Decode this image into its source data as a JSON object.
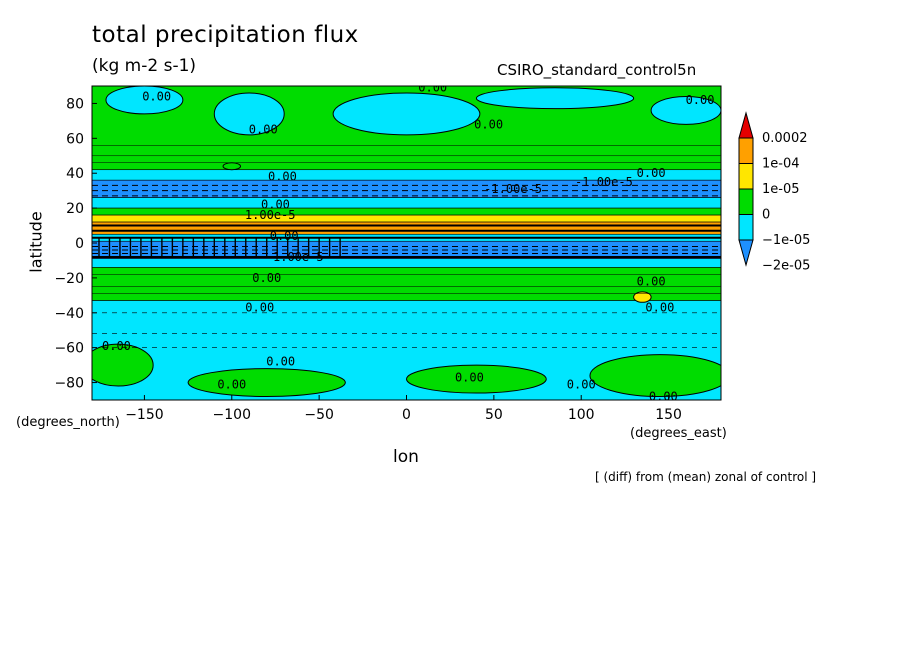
{
  "header": {
    "title": "total precipitation flux",
    "units": "(kg m-2 s-1)",
    "dataset": "CSIRO_standard_control5n",
    "note": "[ (diff) from (mean) zonal of control ]"
  },
  "colors": {
    "c_low": "#1e90ff",
    "c_neg": "#00e6ff",
    "c_zero": "#00dc00",
    "c_pos1": "#ffe600",
    "c_pos2": "#ffa000",
    "c_high": "#e60000"
  },
  "chart_data": {
    "type": "heatmap",
    "title": "total precipitation flux",
    "subtitle": "(kg m-2 s-1)",
    "xlabel": "lon",
    "ylabel": "latitude",
    "x_unit": "(degrees_east)",
    "y_unit": "(degrees_north)",
    "xlim": [
      -180,
      180
    ],
    "ylim": [
      -90,
      90
    ],
    "x_ticks": [
      -150,
      -100,
      -50,
      0,
      50,
      100,
      150
    ],
    "y_ticks": [
      80,
      60,
      40,
      20,
      0,
      -20,
      -40,
      -60,
      -80
    ],
    "colorbar": {
      "labels": [
        "0.0002",
        "1e-04",
        "1e-05",
        "0",
        "-1e-05",
        "-2e-05"
      ],
      "colors": [
        "#e60000",
        "#ffa000",
        "#ffe600",
        "#00dc00",
        "#00e6ff",
        "#1e90ff"
      ]
    },
    "zonal_bands": [
      {
        "lat_from": 90,
        "lat_to": 42,
        "level": "0"
      },
      {
        "lat_from": 42,
        "lat_to": 36,
        "level": "-1e-05"
      },
      {
        "lat_from": 36,
        "lat_to": 26,
        "level": "-2e-05"
      },
      {
        "lat_from": 26,
        "lat_to": 20,
        "level": "-1e-05"
      },
      {
        "lat_from": 20,
        "lat_to": 16,
        "level": "0"
      },
      {
        "lat_from": 16,
        "lat_to": 12,
        "level": "1e-05"
      },
      {
        "lat_from": 12,
        "lat_to": 5,
        "level": "1e-04"
      },
      {
        "lat_from": 5,
        "lat_to": 1,
        "level": "-1e-05"
      },
      {
        "lat_from": 1,
        "lat_to": -9,
        "level": "-2e-05"
      },
      {
        "lat_from": -9,
        "lat_to": -14,
        "level": "-1e-05"
      },
      {
        "lat_from": -14,
        "lat_to": -33,
        "level": "0"
      },
      {
        "lat_from": -33,
        "lat_to": -90,
        "level": "-1e-05"
      }
    ],
    "patches": [
      {
        "lon": -150,
        "lat": 82,
        "rx": 22,
        "ry": 8,
        "level": "-1e-05"
      },
      {
        "lon": -90,
        "lat": 74,
        "rx": 20,
        "ry": 12,
        "level": "-1e-05"
      },
      {
        "lon": 0,
        "lat": 74,
        "rx": 42,
        "ry": 12,
        "level": "-1e-05"
      },
      {
        "lon": 85,
        "lat": 83,
        "rx": 45,
        "ry": 6,
        "level": "-1e-05"
      },
      {
        "lon": 160,
        "lat": 76,
        "rx": 20,
        "ry": 8,
        "level": "-1e-05"
      },
      {
        "lon": -165,
        "lat": -70,
        "rx": 20,
        "ry": 12,
        "level": "0"
      },
      {
        "lon": -80,
        "lat": -80,
        "rx": 45,
        "ry": 8,
        "level": "0"
      },
      {
        "lon": 40,
        "lat": -78,
        "rx": 40,
        "ry": 8,
        "level": "0"
      },
      {
        "lon": 145,
        "lat": -76,
        "rx": 40,
        "ry": 12,
        "level": "0"
      },
      {
        "lon": 135,
        "lat": -31,
        "rx": 5,
        "ry": 3,
        "level": "1e-05"
      },
      {
        "lon": -100,
        "lat": 44,
        "rx": 5,
        "ry": 2,
        "level": "0"
      }
    ],
    "contour_labels": [
      {
        "text": "0.00",
        "lon": 15,
        "lat": 89
      },
      {
        "text": "0.00",
        "lon": -143,
        "lat": 84
      },
      {
        "text": "0.00",
        "lon": -82,
        "lat": 65
      },
      {
        "text": "0.00",
        "lon": 47,
        "lat": 68
      },
      {
        "text": "0.00",
        "lon": 168,
        "lat": 82
      },
      {
        "text": "0.00",
        "lon": 140,
        "lat": 40
      },
      {
        "text": "0.00",
        "lon": -71,
        "lat": 38
      },
      {
        "text": "-1.00e-5",
        "lon": 61,
        "lat": 31
      },
      {
        "text": "-1.00e-5",
        "lon": 113,
        "lat": 35
      },
      {
        "text": "0.00",
        "lon": -75,
        "lat": 22
      },
      {
        "text": "1.00e-5",
        "lon": -78,
        "lat": 16
      },
      {
        "text": "0.00",
        "lon": -70,
        "lat": 4
      },
      {
        "text": "-1.00e-5",
        "lon": -64,
        "lat": -8
      },
      {
        "text": "0.00",
        "lon": -80,
        "lat": -20
      },
      {
        "text": "0.00",
        "lon": 140,
        "lat": -22
      },
      {
        "text": "0.00",
        "lon": -84,
        "lat": -37
      },
      {
        "text": "0.00",
        "lon": 145,
        "lat": -37
      },
      {
        "text": "0.00",
        "lon": -166,
        "lat": -59
      },
      {
        "text": "0.00",
        "lon": -72,
        "lat": -68
      },
      {
        "text": "0.00",
        "lon": -100,
        "lat": -81
      },
      {
        "text": "0.00",
        "lon": 36,
        "lat": -77
      },
      {
        "text": "0.00",
        "lon": 100,
        "lat": -81
      },
      {
        "text": "0.00",
        "lon": 147,
        "lat": -88
      }
    ]
  }
}
